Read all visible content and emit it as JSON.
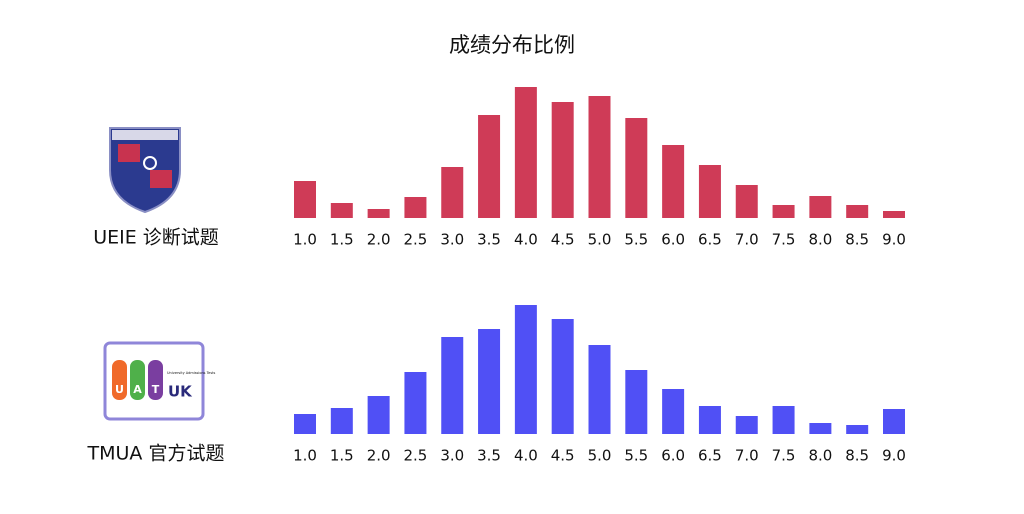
{
  "title": "成绩分布比例",
  "chart_data": [
    {
      "type": "bar",
      "label": "UEIE 诊断试题",
      "color": "#cf3b57",
      "categories": [
        "1.0",
        "1.5",
        "2.0",
        "2.5",
        "3.0",
        "3.5",
        "4.0",
        "4.5",
        "5.0",
        "5.5",
        "6.0",
        "6.5",
        "7.0",
        "7.5",
        "8.0",
        "8.5",
        "9.0"
      ],
      "values": [
        37,
        15,
        9,
        21,
        51,
        103,
        131,
        116,
        122,
        100,
        73,
        53,
        33,
        13,
        22,
        13,
        7
      ],
      "ylim": [
        0,
        135
      ]
    },
    {
      "type": "bar",
      "label": "TMUA 官方试题",
      "color": "#5050f5",
      "logo": {
        "letters": [
          "U",
          "A",
          "T"
        ],
        "name": "UK",
        "caption": "University Admissions Tests"
      },
      "categories": [
        "1.0",
        "1.5",
        "2.0",
        "2.5",
        "3.0",
        "3.5",
        "4.0",
        "4.5",
        "5.0",
        "5.5",
        "6.0",
        "6.5",
        "7.0",
        "7.5",
        "8.0",
        "8.5",
        "9.0"
      ],
      "values": [
        20,
        26,
        38,
        62,
        97,
        105,
        129,
        115,
        89,
        64,
        45,
        28,
        18,
        28,
        11,
        9,
        25
      ],
      "ylim": [
        0,
        135
      ]
    }
  ]
}
